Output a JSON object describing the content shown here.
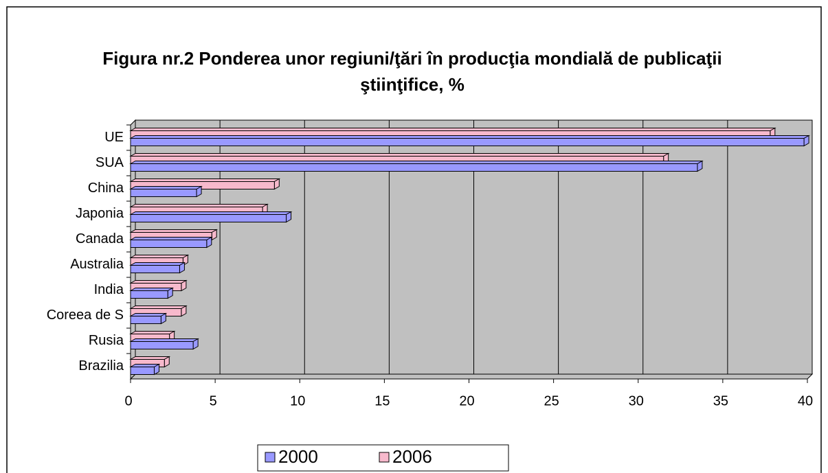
{
  "chart_data": {
    "type": "bar",
    "orientation": "horizontal",
    "title": "Figura nr.2 Ponderea unor regiuni/ţări în producţia mondială de publicaţii ştiinţifice, %",
    "categories": [
      "UE",
      "SUA",
      "China",
      "Japonia",
      "Canada",
      "Australia",
      "India",
      "Coreea de S",
      "Rusia",
      "Brazilia"
    ],
    "series": [
      {
        "name": "2000",
        "color": "#9999ff",
        "values": [
          39.8,
          33.5,
          3.9,
          9.2,
          4.5,
          2.9,
          2.2,
          1.8,
          3.7,
          1.4
        ]
      },
      {
        "name": "2006",
        "color": "#f7b9cc",
        "values": [
          37.8,
          31.5,
          8.5,
          7.8,
          4.8,
          3.1,
          3.0,
          3.0,
          2.3,
          2.0
        ]
      }
    ],
    "xlim": [
      0,
      40
    ],
    "xticks": [
      0,
      5,
      10,
      15,
      20,
      25,
      30,
      35,
      40
    ],
    "grid": true,
    "legend": "bottom"
  }
}
